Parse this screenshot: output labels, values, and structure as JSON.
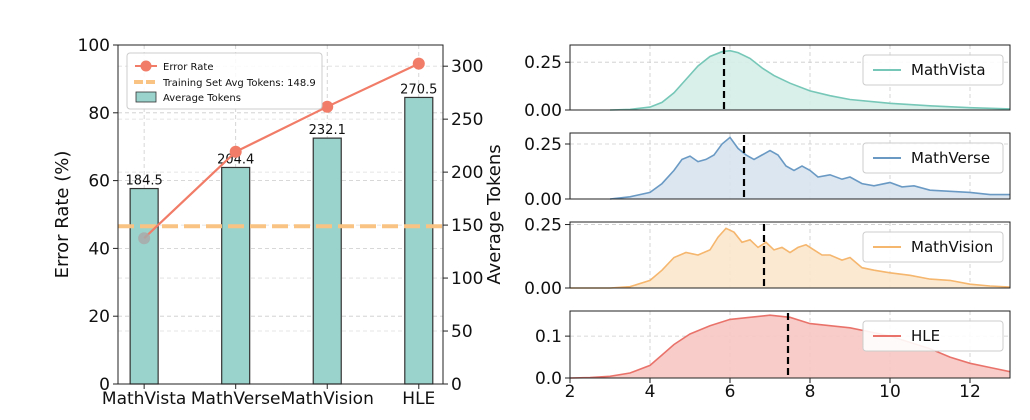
{
  "chart_data": [
    {
      "type": "bar+line",
      "categories": [
        "MathVista",
        "MathVerse",
        "MathVision",
        "HLE"
      ],
      "xlabel": "",
      "ylabel_left": "Error Rate (%)",
      "ylabel_right": "Average Tokens",
      "ylim_left": [
        0,
        100
      ],
      "ylim_right": [
        0,
        320
      ],
      "yticks_left": [
        "0",
        "20",
        "40",
        "60",
        "80",
        "100"
      ],
      "yticks_right": [
        "0",
        "50",
        "100",
        "150",
        "200",
        "250",
        "300"
      ],
      "grid": true,
      "legend_position": "top-left",
      "series": [
        {
          "name": "Error Rate",
          "kind": "line",
          "axis": "left",
          "color": "#f17c67",
          "values": [
            43,
            68.5,
            81.8,
            94.5
          ]
        },
        {
          "name": "Average Tokens",
          "kind": "bar",
          "axis": "right",
          "color": "#9ad3cb",
          "values": [
            184.5,
            204.4,
            232.1,
            270.5
          ],
          "labels": [
            "184.5",
            "204.4",
            "232.1",
            "270.5"
          ]
        }
      ],
      "reference_line": {
        "name": "Training Set Avg Tokens: 148.9",
        "value": 148.9,
        "axis": "right",
        "color": "#f8c383",
        "style": "dashed"
      }
    },
    {
      "type": "area",
      "xlim": [
        2,
        13
      ],
      "xticks": [
        "2",
        "4",
        "6",
        "8",
        "10",
        "12"
      ],
      "grid": true,
      "legend_position": "right",
      "panels": [
        {
          "name": "MathVista",
          "color": "#76c7b7",
          "fill": "#d4ede8",
          "ylim": [
            0,
            0.34
          ],
          "yticks": [
            "0.00",
            "0.25"
          ],
          "mean": 5.85,
          "x": [
            3.0,
            3.5,
            4.0,
            4.3,
            4.6,
            4.9,
            5.2,
            5.5,
            5.8,
            6.0,
            6.2,
            6.5,
            6.8,
            7.1,
            7.5,
            8.0,
            8.5,
            9.0,
            10.0,
            11.0,
            12.0,
            13.0
          ],
          "y": [
            0.0,
            0.003,
            0.015,
            0.04,
            0.09,
            0.16,
            0.23,
            0.28,
            0.305,
            0.31,
            0.3,
            0.27,
            0.22,
            0.18,
            0.14,
            0.1,
            0.075,
            0.055,
            0.035,
            0.022,
            0.012,
            0.006
          ]
        },
        {
          "name": "MathVerse",
          "color": "#6a9ac4",
          "fill": "#d8e3ef",
          "ylim": [
            0,
            0.3
          ],
          "yticks": [
            "0.00",
            "0.25"
          ],
          "mean": 6.35,
          "x": [
            3.0,
            3.5,
            4.0,
            4.3,
            4.6,
            4.8,
            5.0,
            5.2,
            5.4,
            5.6,
            5.8,
            6.0,
            6.2,
            6.4,
            6.6,
            6.8,
            7.0,
            7.2,
            7.4,
            7.6,
            7.8,
            8.0,
            8.2,
            8.5,
            8.8,
            9.0,
            9.3,
            9.6,
            10.0,
            10.3,
            10.6,
            11.0,
            11.5,
            12.0,
            12.5,
            13.0
          ],
          "y": [
            0.0,
            0.01,
            0.03,
            0.07,
            0.13,
            0.18,
            0.195,
            0.17,
            0.18,
            0.2,
            0.25,
            0.28,
            0.23,
            0.2,
            0.18,
            0.2,
            0.22,
            0.2,
            0.15,
            0.13,
            0.15,
            0.13,
            0.1,
            0.11,
            0.09,
            0.1,
            0.07,
            0.06,
            0.075,
            0.055,
            0.06,
            0.04,
            0.035,
            0.03,
            0.02,
            0.02
          ]
        },
        {
          "name": "MathVision",
          "color": "#f5b66e",
          "fill": "#fce7cd",
          "ylim": [
            0,
            0.26
          ],
          "yticks": [
            "0.00",
            "0.25"
          ],
          "mean": 6.85,
          "x": [
            2.0,
            3.0,
            3.5,
            4.0,
            4.3,
            4.6,
            4.9,
            5.2,
            5.5,
            5.7,
            5.9,
            6.1,
            6.3,
            6.5,
            6.7,
            6.9,
            7.1,
            7.3,
            7.5,
            7.7,
            7.9,
            8.1,
            8.3,
            8.5,
            8.8,
            9.0,
            9.3,
            9.6,
            10.0,
            10.5,
            11.0,
            11.5,
            12.0,
            12.5,
            13.0
          ],
          "y": [
            0.0,
            0.0,
            0.005,
            0.03,
            0.07,
            0.12,
            0.14,
            0.13,
            0.15,
            0.2,
            0.235,
            0.22,
            0.18,
            0.19,
            0.16,
            0.18,
            0.15,
            0.16,
            0.14,
            0.16,
            0.17,
            0.15,
            0.13,
            0.13,
            0.11,
            0.12,
            0.08,
            0.07,
            0.06,
            0.05,
            0.035,
            0.03,
            0.015,
            0.008,
            0.004
          ]
        },
        {
          "name": "HLE",
          "color": "#e9736b",
          "fill": "#f7c8c3",
          "ylim": [
            0,
            0.16
          ],
          "yticks": [
            "0.0",
            "0.1"
          ],
          "mean": 7.45,
          "x": [
            2.0,
            2.5,
            3.0,
            3.5,
            4.0,
            4.3,
            4.6,
            5.0,
            5.5,
            6.0,
            6.5,
            7.0,
            7.5,
            8.0,
            8.5,
            9.0,
            9.5,
            10.0,
            10.5,
            11.0,
            11.5,
            12.0,
            12.5,
            13.0
          ],
          "y": [
            0.0,
            0.001,
            0.004,
            0.012,
            0.03,
            0.055,
            0.08,
            0.105,
            0.125,
            0.14,
            0.145,
            0.15,
            0.145,
            0.13,
            0.125,
            0.12,
            0.11,
            0.1,
            0.085,
            0.07,
            0.05,
            0.035,
            0.025,
            0.015
          ]
        }
      ]
    }
  ]
}
